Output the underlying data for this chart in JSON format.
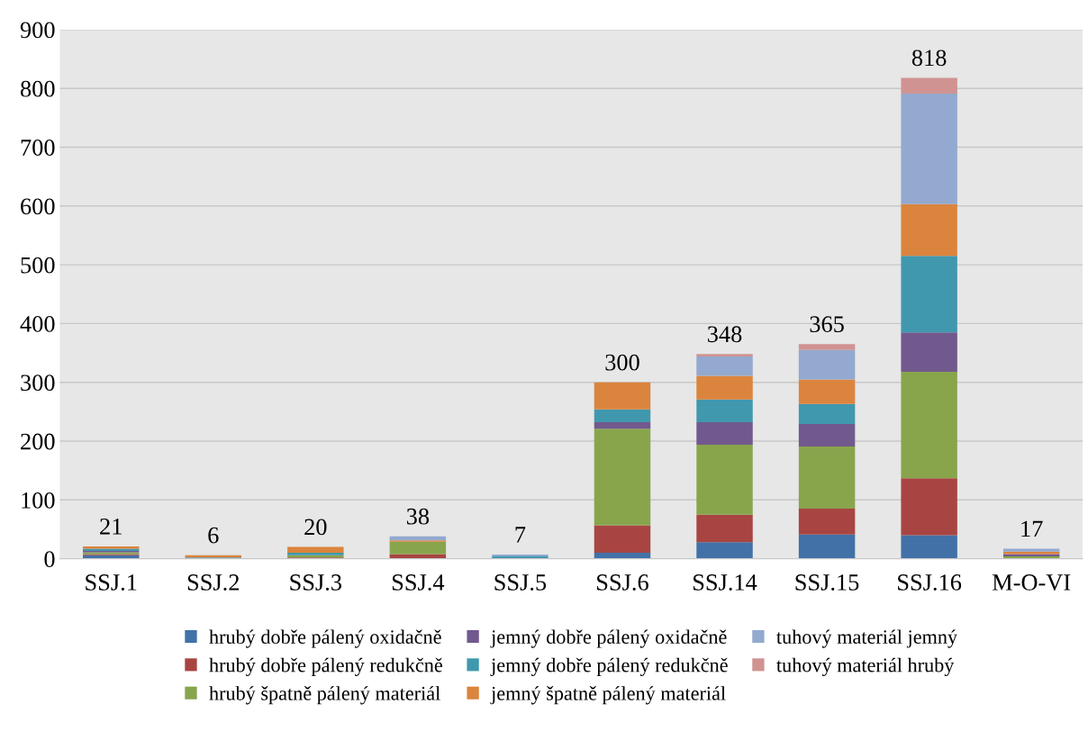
{
  "chart_data": {
    "type": "bar",
    "stacked": true,
    "categories": [
      "SSJ.1",
      "SSJ.2",
      "SSJ.3",
      "SSJ.4",
      "SSJ.5",
      "SSJ.6",
      "SSJ.14",
      "SSJ.15",
      "SSJ.16",
      "M-O-VI"
    ],
    "series": [
      {
        "name": "hrubý dobře pálený oxidačně",
        "color": "#4271a8",
        "values": [
          6,
          0,
          0,
          0,
          0,
          10,
          28,
          41,
          40,
          0
        ]
      },
      {
        "name": "hrubý dobře pálený redukčně",
        "color": "#a84542",
        "values": [
          2,
          0,
          2,
          8,
          0,
          47,
          47,
          44,
          97,
          0
        ]
      },
      {
        "name": "hrubý špatně pálený materiál",
        "color": "#88a54c",
        "values": [
          3,
          0,
          4,
          21,
          0,
          164,
          119,
          106,
          181,
          4
        ]
      },
      {
        "name": "jemný dobře pálený oxidačně",
        "color": "#72598d",
        "values": [
          2,
          0,
          0,
          0,
          0,
          11,
          38,
          38,
          67,
          4
        ]
      },
      {
        "name": "jemný dobře pálený redukčně",
        "color": "#4098ae",
        "values": [
          4,
          2,
          4,
          0,
          4,
          22,
          39,
          34,
          130,
          0
        ]
      },
      {
        "name": "jemný špatně pálený materiál",
        "color": "#db843d",
        "values": [
          4,
          4,
          10,
          2,
          0,
          46,
          40,
          42,
          88,
          4
        ]
      },
      {
        "name": "tuhový materiál jemný",
        "color": "#93a9cf",
        "values": [
          0,
          0,
          0,
          7,
          3,
          0,
          33,
          50,
          188,
          5
        ]
      },
      {
        "name": "tuhový materiál hrubý",
        "color": "#d09392",
        "values": [
          0,
          0,
          0,
          0,
          0,
          0,
          4,
          10,
          27,
          0
        ]
      }
    ],
    "totals": [
      "21",
      "6",
      "20",
      "38",
      "7",
      "300",
      "348",
      "365",
      "818",
      "17"
    ],
    "ylim": [
      0,
      900
    ],
    "yticks": [
      0,
      100,
      200,
      300,
      400,
      500,
      600,
      700,
      800,
      900
    ],
    "grid": "y",
    "legend": "bottom"
  }
}
